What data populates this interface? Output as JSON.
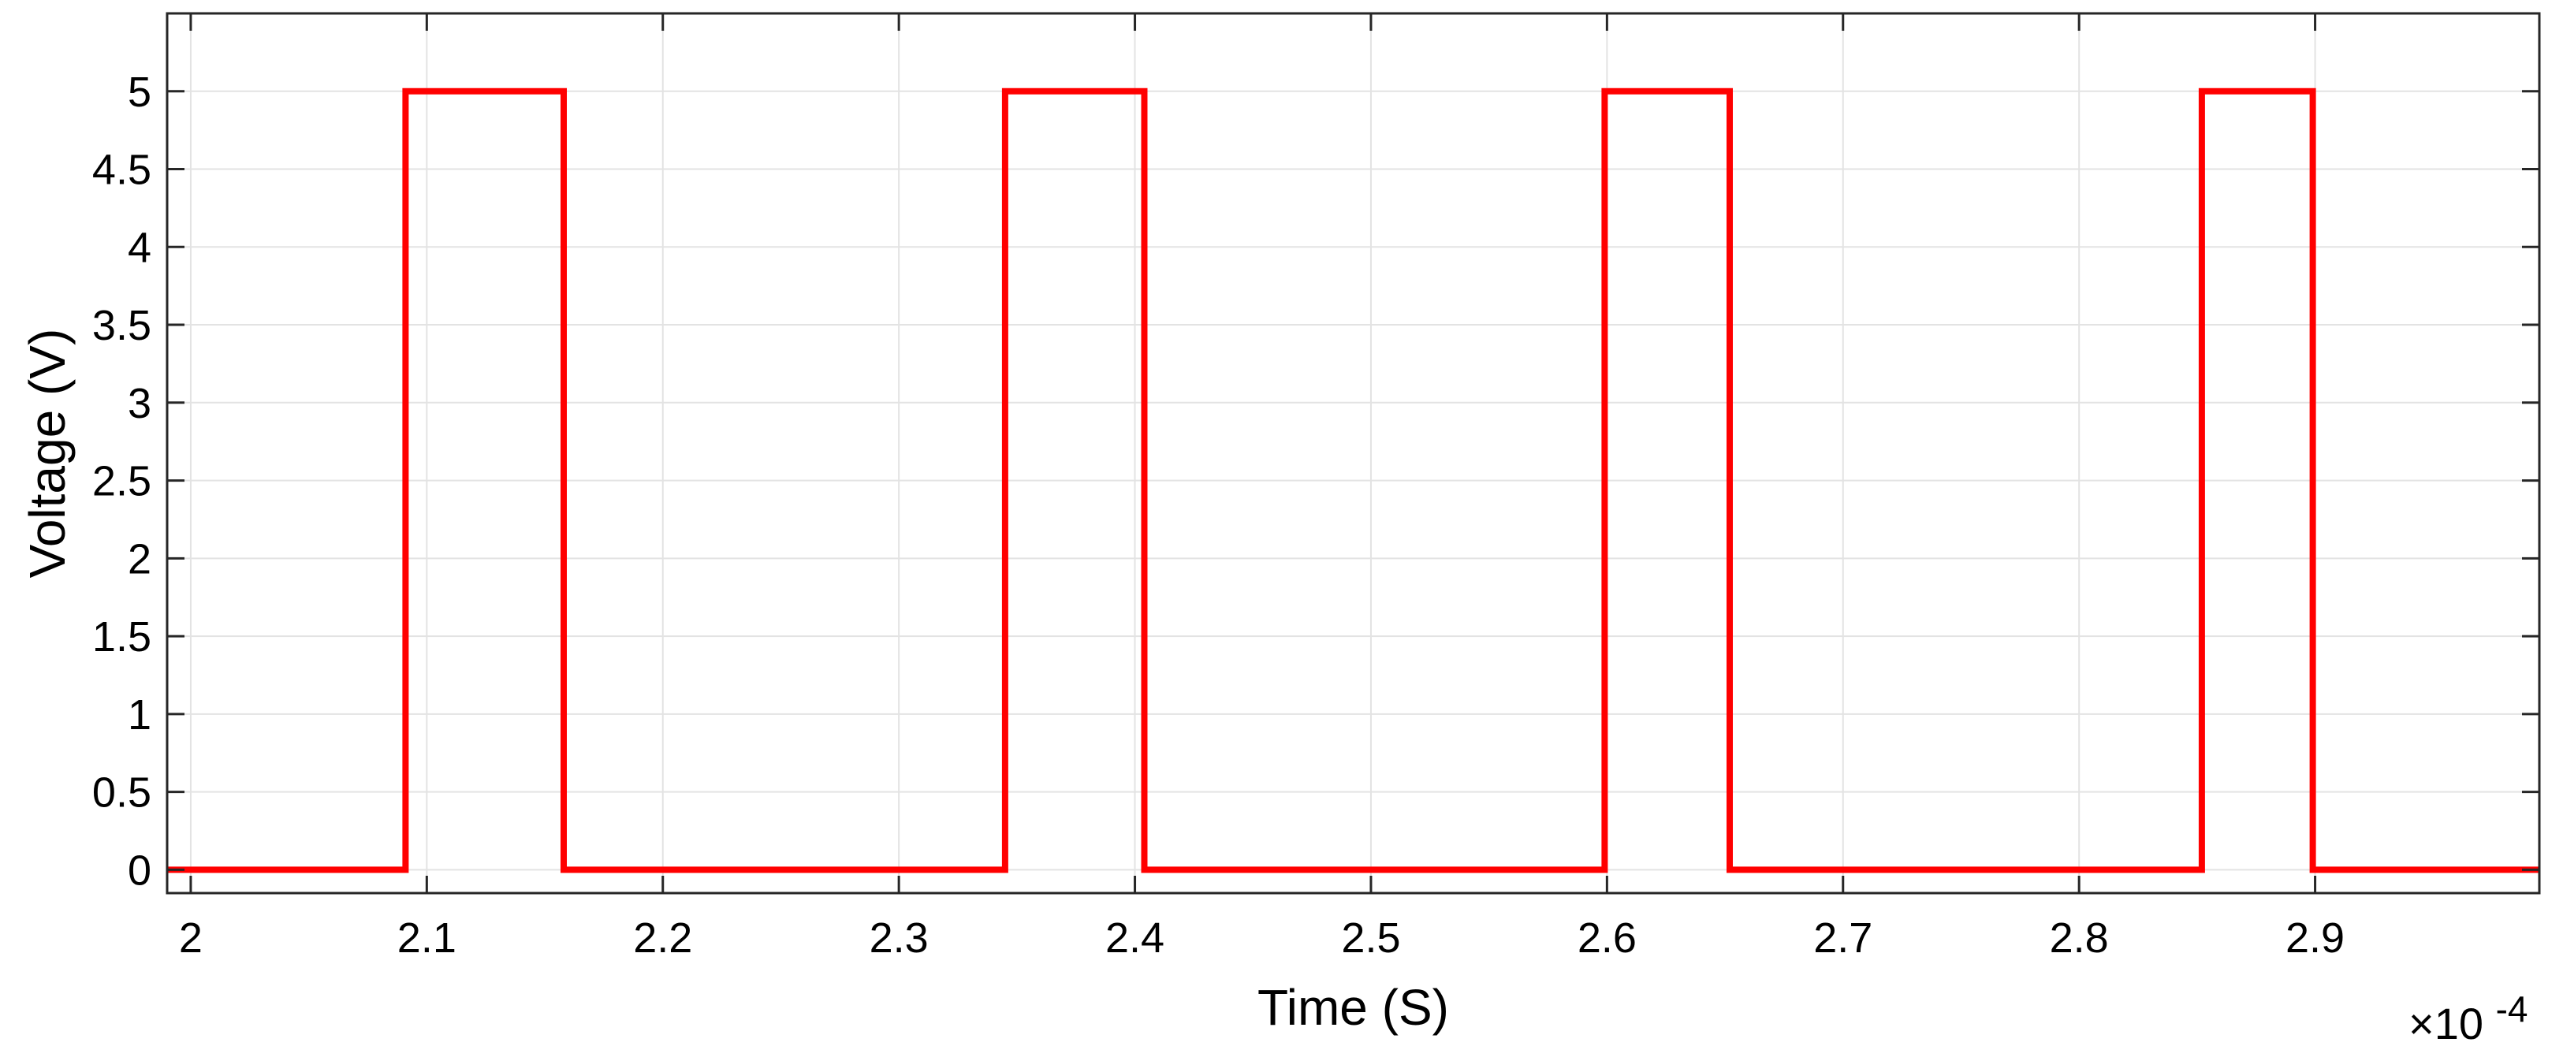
{
  "chart_data": {
    "type": "line",
    "title": "",
    "xlabel": "Time (S)",
    "ylabel": "Voltage (V)",
    "x_exponent_label": "×10",
    "x_exponent_power": "-4",
    "x_scale": 0.0001,
    "xlim": [
      1.99,
      2.995
    ],
    "ylim": [
      -0.15,
      5.5
    ],
    "grid": true,
    "legend": "none",
    "color": "#ff0000",
    "x_ticks": [
      2.0,
      2.1,
      2.2,
      2.3,
      2.4,
      2.5,
      2.6,
      2.7,
      2.8,
      2.9
    ],
    "x_tick_labels": [
      "2",
      "2.1",
      "2.2",
      "2.3",
      "2.4",
      "2.5",
      "2.6",
      "2.7",
      "2.8",
      "2.9"
    ],
    "y_ticks": [
      0,
      0.5,
      1,
      1.5,
      2,
      2.5,
      3,
      3.5,
      4,
      4.5,
      5
    ],
    "y_tick_labels": [
      "0",
      "0.5",
      "1",
      "1.5",
      "2",
      "2.5",
      "3",
      "3.5",
      "4",
      "4.5",
      "5"
    ],
    "series": [
      {
        "x": [
          1.99,
          2.091,
          2.091,
          2.158,
          2.158,
          2.345,
          2.345,
          2.404,
          2.404,
          2.599,
          2.599,
          2.652,
          2.652,
          2.852,
          2.852,
          2.899,
          2.899,
          2.995
        ],
        "y": [
          0,
          0,
          5,
          5,
          0,
          0,
          5,
          5,
          0,
          0,
          5,
          5,
          0,
          0,
          5,
          5,
          0,
          0
        ]
      }
    ]
  }
}
